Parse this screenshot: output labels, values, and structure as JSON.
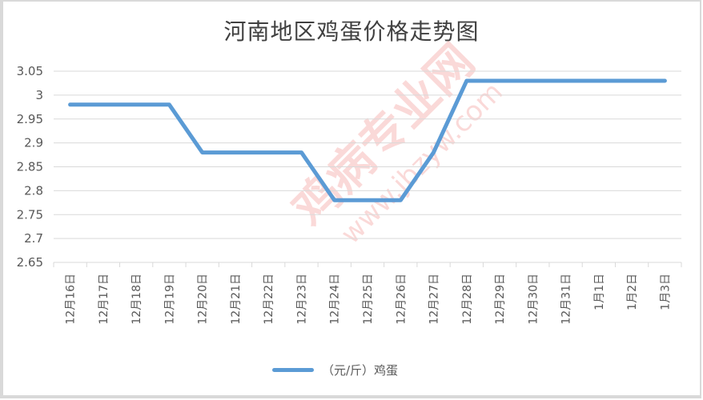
{
  "chart_data": {
    "type": "line",
    "title": "河南地区鸡蛋价格走势图",
    "xlabel": "",
    "ylabel": "",
    "ylim": [
      2.65,
      3.05
    ],
    "yticks": [
      "3.05",
      "3",
      "2.95",
      "2.9",
      "2.85",
      "2.8",
      "2.75",
      "2.7",
      "2.65"
    ],
    "grid": true,
    "legend_position": "bottom",
    "categories": [
      "12月16日",
      "12月17日",
      "12月18日",
      "12月19日",
      "12月20日",
      "12月21日",
      "12月22日",
      "12月23日",
      "12月24日",
      "12月25日",
      "12月26日",
      "12月27日",
      "12月28日",
      "12月29日",
      "12月30日",
      "12月31日",
      "1月1日",
      "1月2日",
      "1月3日"
    ],
    "series": [
      {
        "name": "（元/斤）鸡蛋",
        "color": "#5b9bd5",
        "values": [
          2.98,
          2.98,
          2.98,
          2.98,
          2.88,
          2.88,
          2.88,
          2.88,
          2.78,
          2.78,
          2.78,
          2.88,
          3.03,
          3.03,
          3.03,
          3.03,
          3.03,
          3.03,
          3.03
        ]
      }
    ]
  },
  "legend": {
    "label": "（元/斤）鸡蛋"
  },
  "watermark": {
    "text": "鸡病专业网",
    "url_text": "www.jbzyw.com"
  }
}
